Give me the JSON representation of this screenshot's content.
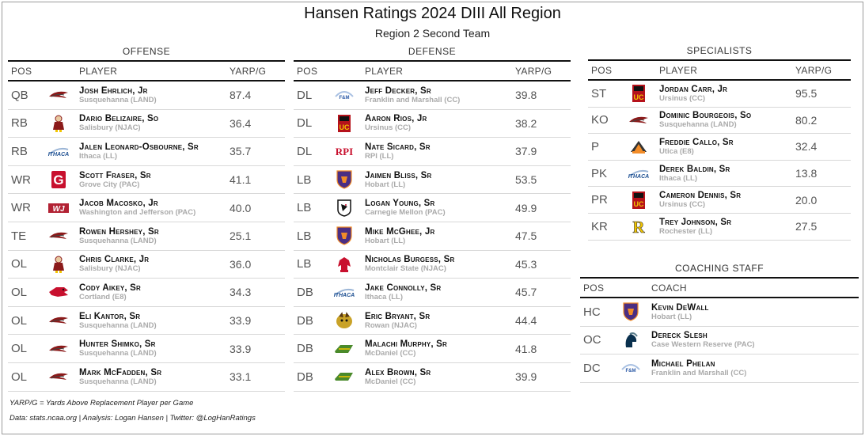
{
  "title": "Hansen Ratings 2024 DIII All Region",
  "subtitle": "Region 2 Second Team",
  "offense": {
    "label": "OFFENSE",
    "headers": {
      "pos": "POS",
      "player": "PLAYER",
      "val": "YARP/G"
    },
    "rows": [
      {
        "pos": "QB",
        "name": "Josh Ehrlich, Jr",
        "school": "Susquehanna (LAND)",
        "val": "87.4",
        "logo": "susquehanna"
      },
      {
        "pos": "RB",
        "name": "Dario Belizaire, So",
        "school": "Salisbury (NJAC)",
        "val": "36.4",
        "logo": "salisbury"
      },
      {
        "pos": "RB",
        "name": "Jalen Leonard-Osbourne, Sr",
        "school": "Ithaca (LL)",
        "val": "35.7",
        "logo": "ithaca"
      },
      {
        "pos": "WR",
        "name": "Scott Fraser, Sr",
        "school": "Grove City (PAC)",
        "val": "41.1",
        "logo": "grovecity"
      },
      {
        "pos": "WR",
        "name": "Jacob Macosko, Jr",
        "school": "Washington and Jefferson (PAC)",
        "val": "40.0",
        "logo": "wj"
      },
      {
        "pos": "TE",
        "name": "Rowen Hershey, Sr",
        "school": "Susquehanna (LAND)",
        "val": "25.1",
        "logo": "susquehanna"
      },
      {
        "pos": "OL",
        "name": "Chris Clarke, Jr",
        "school": "Salisbury (NJAC)",
        "val": "36.0",
        "logo": "salisbury"
      },
      {
        "pos": "OL",
        "name": "Cody Aikey, Sr",
        "school": "Cortland (E8)",
        "val": "34.3",
        "logo": "cortland"
      },
      {
        "pos": "OL",
        "name": "Eli Kantor, Sr",
        "school": "Susquehanna (LAND)",
        "val": "33.9",
        "logo": "susquehanna"
      },
      {
        "pos": "OL",
        "name": "Hunter Shimko, Sr",
        "school": "Susquehanna (LAND)",
        "val": "33.9",
        "logo": "susquehanna"
      },
      {
        "pos": "OL",
        "name": "Mark McFadden, Sr",
        "school": "Susquehanna (LAND)",
        "val": "33.1",
        "logo": "susquehanna"
      }
    ]
  },
  "defense": {
    "label": "DEFENSE",
    "headers": {
      "pos": "POS",
      "player": "PLAYER",
      "val": "YARP/G"
    },
    "rows": [
      {
        "pos": "DL",
        "name": "Jeff Decker, Sr",
        "school": "Franklin and Marshall (CC)",
        "val": "39.8",
        "logo": "fandm"
      },
      {
        "pos": "DL",
        "name": "Aaron Rios, Jr",
        "school": "Ursinus (CC)",
        "val": "38.2",
        "logo": "ursinus"
      },
      {
        "pos": "DL",
        "name": "Nate Sicard, Sr",
        "school": "RPI (LL)",
        "val": "37.9",
        "logo": "rpi"
      },
      {
        "pos": "LB",
        "name": "Jaimen Bliss, Sr",
        "school": "Hobart (LL)",
        "val": "53.5",
        "logo": "hobart"
      },
      {
        "pos": "LB",
        "name": "Logan Young, Sr",
        "school": "Carnegie Mellon (PAC)",
        "val": "49.9",
        "logo": "cmu"
      },
      {
        "pos": "LB",
        "name": "Mike McGhee, Jr",
        "school": "Hobart (LL)",
        "val": "47.5",
        "logo": "hobart"
      },
      {
        "pos": "LB",
        "name": "Nicholas Burgess, Sr",
        "school": "Montclair State (NJAC)",
        "val": "45.3",
        "logo": "montclair"
      },
      {
        "pos": "DB",
        "name": "Jake Connolly, Sr",
        "school": "Ithaca (LL)",
        "val": "45.7",
        "logo": "ithaca"
      },
      {
        "pos": "DB",
        "name": "Eric Bryant, Sr",
        "school": "Rowan (NJAC)",
        "val": "44.4",
        "logo": "rowan"
      },
      {
        "pos": "DB",
        "name": "Malachi Murphy, Sr",
        "school": "McDaniel (CC)",
        "val": "41.8",
        "logo": "mcdaniel"
      },
      {
        "pos": "DB",
        "name": "Alex Brown, Sr",
        "school": "McDaniel (CC)",
        "val": "39.9",
        "logo": "mcdaniel"
      }
    ]
  },
  "specialists": {
    "label": "SPECIALISTS",
    "headers": {
      "pos": "POS",
      "player": "PLAYER",
      "val": "YARP/G"
    },
    "rows": [
      {
        "pos": "ST",
        "name": "Jordan Carr, Jr",
        "school": "Ursinus (CC)",
        "val": "95.5",
        "logo": "ursinus"
      },
      {
        "pos": "KO",
        "name": "Dominic Bourgeois, So",
        "school": "Susquehanna (LAND)",
        "val": "80.2",
        "logo": "susquehanna"
      },
      {
        "pos": "P",
        "name": "Freddie Callo, Sr",
        "school": "Utica (E8)",
        "val": "32.4",
        "logo": "utica"
      },
      {
        "pos": "PK",
        "name": "Derek Baldin, Sr",
        "school": "Ithaca (LL)",
        "val": "13.8",
        "logo": "ithaca"
      },
      {
        "pos": "PR",
        "name": "Cameron Dennis, Sr",
        "school": "Ursinus (CC)",
        "val": "20.0",
        "logo": "ursinus"
      },
      {
        "pos": "KR",
        "name": "Trey Johnson, Sr",
        "school": "Rochester (LL)",
        "val": "27.5",
        "logo": "rochester"
      }
    ]
  },
  "coaching": {
    "label": "COACHING STAFF",
    "headers": {
      "pos": "POS",
      "coach": "COACH"
    },
    "rows": [
      {
        "pos": "HC",
        "name": "Kevin DeWall",
        "school": "Hobart (LL)",
        "logo": "hobart"
      },
      {
        "pos": "OC",
        "name": "Dereck Slesh",
        "school": "Case Western Reserve (PAC)",
        "logo": "cwru"
      },
      {
        "pos": "DC",
        "name": "Michael Phelan",
        "school": "Franklin and Marshall (CC)",
        "logo": "fandm"
      }
    ]
  },
  "logo_text": {
    "ithaca": "ITHACA",
    "grovecity": "G",
    "wj": "WJ",
    "rpi": "RPI",
    "rochester": "R",
    "fandm": "F&M",
    "ursinus": "UC"
  },
  "colors": {
    "susquehanna": "#8b1a1a",
    "salisbury": "#8b1a1a",
    "ithaca": "#1d4f91",
    "grovecity": "#c8102e",
    "wj": "#b22234",
    "cortland": "#c8102e",
    "fandm": "#2b59a6",
    "ursinus": "#b5121b",
    "rpi": "#c8102e",
    "hobart": "#4b2e83",
    "cmu": "#111111",
    "montclair": "#c8102e",
    "rowan": "#c9a227",
    "mcdaniel": "#4a8a2a",
    "utica": "#f28c28",
    "rochester": "#f2c500",
    "cwru": "#0a304e"
  },
  "footnotes": {
    "yarp": "YARP/G = Yards Above Replacement Player per Game",
    "source": "Data: stats.ncaa.org | Analysis: Logan Hansen | Twitter: @LogHanRatings"
  }
}
